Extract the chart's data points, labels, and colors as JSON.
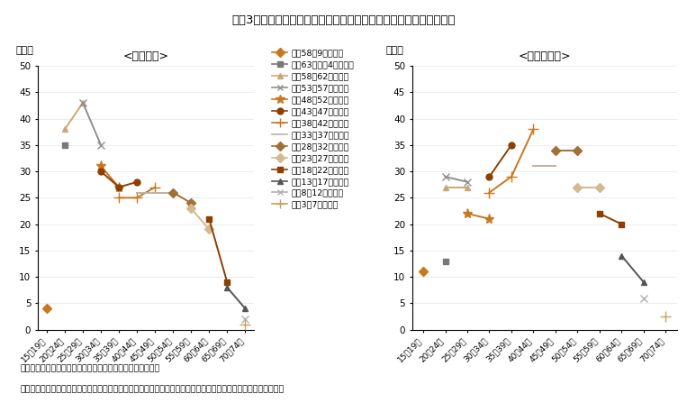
{
  "title": "図袅3　女性の年齢階級別労働力率の世代による特徴（雇用形態別）",
  "subtitle_left": "<正規雇用>",
  "subtitle_right": "<非正規雇用>",
  "ylabel": "（％）",
  "footnote1": "（備考）１．総務省「労働力調査（詳細集計）」より作成。",
  "footnote2": "　　　　２．「正規の職員・従業員」を「正規雇用」、「非正規の職員・従業員」を「非正規雇用」としている。",
  "age_groups": [
    "15～19歳",
    "20～24歳",
    "25～29歳",
    "30～34歳",
    "35～39歳",
    "40～44歳",
    "45～49歳",
    "50～54歳",
    "55～59歳",
    "60～64歳",
    "65～69歳",
    "70～74歳"
  ],
  "legend_labels": [
    "平成58～9年生まれ",
    "昭和63～平成4年生まれ",
    "昭和58～62年生まれ",
    "昭和53～57年生まれ",
    "昭和48～52年生まれ",
    "昭和43～47年生まれ",
    "昭和38～42年生まれ",
    "昭和33～37年生まれ",
    "昭和28～32年生まれ",
    "昭和23～27年生まれ",
    "昭和18～22年生まれ",
    "昭和13～17年生まれ",
    "昭和8～12年生まれ",
    "昭和3～7年生まれ"
  ],
  "series_colors": [
    "#c8781e",
    "#787878",
    "#c8a878",
    "#909090",
    "#c8781e",
    "#8b4000",
    "#c8781e",
    "#c0b0a0",
    "#a07038",
    "#d4b890",
    "#8b4000",
    "#555555",
    "#b0b0b0",
    "#c8a060"
  ],
  "series_markers": [
    "D",
    "s",
    "^",
    "x",
    "*",
    "o",
    "+",
    null,
    "D",
    "D",
    "s",
    "^",
    "x",
    "+"
  ],
  "regular_data": [
    [
      4.0,
      null,
      null,
      null,
      null,
      null,
      null,
      null,
      null,
      null,
      null,
      null
    ],
    [
      null,
      35.0,
      null,
      null,
      null,
      null,
      null,
      null,
      null,
      null,
      null,
      null
    ],
    [
      null,
      38.0,
      43.0,
      null,
      null,
      null,
      null,
      null,
      null,
      null,
      null,
      null
    ],
    [
      null,
      null,
      43.0,
      35.0,
      null,
      null,
      null,
      null,
      null,
      null,
      null,
      null
    ],
    [
      null,
      null,
      null,
      31.0,
      27.0,
      null,
      null,
      null,
      null,
      null,
      null,
      null
    ],
    [
      null,
      null,
      null,
      30.0,
      27.0,
      28.0,
      null,
      null,
      null,
      null,
      null,
      null
    ],
    [
      null,
      null,
      null,
      null,
      25.0,
      25.0,
      27.0,
      null,
      null,
      null,
      null,
      null
    ],
    [
      null,
      null,
      null,
      null,
      null,
      26.0,
      26.0,
      26.0,
      null,
      null,
      null,
      null
    ],
    [
      null,
      null,
      null,
      null,
      null,
      null,
      null,
      26.0,
      24.0,
      null,
      null,
      null
    ],
    [
      null,
      null,
      null,
      null,
      null,
      null,
      null,
      null,
      23.0,
      19.0,
      null,
      null
    ],
    [
      null,
      null,
      null,
      null,
      null,
      null,
      null,
      null,
      null,
      21.0,
      9.0,
      null
    ],
    [
      null,
      null,
      null,
      null,
      null,
      null,
      null,
      null,
      null,
      null,
      8.0,
      4.0
    ],
    [
      null,
      null,
      null,
      null,
      null,
      null,
      null,
      null,
      null,
      null,
      null,
      2.0
    ],
    [
      null,
      null,
      null,
      null,
      null,
      null,
      null,
      null,
      null,
      null,
      null,
      1.0
    ]
  ],
  "irregular_data": [
    [
      11.0,
      null,
      null,
      null,
      null,
      null,
      null,
      null,
      null,
      null,
      null,
      null
    ],
    [
      null,
      13.0,
      null,
      null,
      null,
      null,
      null,
      null,
      null,
      null,
      null,
      null
    ],
    [
      null,
      27.0,
      27.0,
      null,
      null,
      null,
      null,
      null,
      null,
      null,
      null,
      null
    ],
    [
      null,
      29.0,
      28.0,
      null,
      null,
      null,
      null,
      null,
      null,
      null,
      null,
      null
    ],
    [
      null,
      null,
      22.0,
      21.0,
      null,
      null,
      null,
      null,
      null,
      null,
      null,
      null
    ],
    [
      null,
      null,
      null,
      29.0,
      35.0,
      null,
      null,
      null,
      null,
      null,
      null,
      null
    ],
    [
      null,
      null,
      null,
      26.0,
      29.0,
      38.0,
      null,
      null,
      null,
      null,
      null,
      null
    ],
    [
      null,
      null,
      null,
      null,
      null,
      31.0,
      31.0,
      null,
      null,
      null,
      null,
      null
    ],
    [
      null,
      null,
      null,
      null,
      null,
      null,
      34.0,
      34.0,
      null,
      null,
      null,
      null
    ],
    [
      null,
      null,
      null,
      null,
      null,
      null,
      null,
      27.0,
      27.0,
      null,
      null,
      null
    ],
    [
      null,
      null,
      null,
      null,
      null,
      null,
      null,
      null,
      22.0,
      20.0,
      null,
      null
    ],
    [
      null,
      null,
      null,
      null,
      null,
      null,
      null,
      null,
      null,
      14.0,
      9.0,
      null
    ],
    [
      null,
      null,
      null,
      null,
      null,
      null,
      null,
      null,
      null,
      null,
      6.0,
      null
    ],
    [
      null,
      null,
      null,
      null,
      null,
      null,
      null,
      null,
      null,
      null,
      null,
      2.5
    ]
  ],
  "ylim": [
    0,
    50
  ],
  "yticks": [
    0,
    5,
    10,
    15,
    20,
    25,
    30,
    35,
    40,
    45,
    50
  ]
}
